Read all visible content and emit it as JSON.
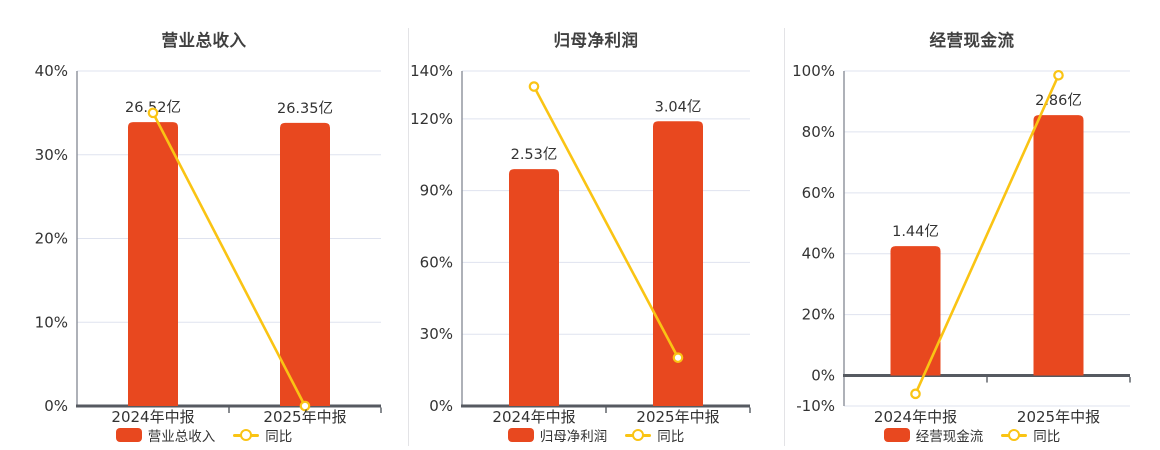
{
  "page": {
    "background": "#ffffff"
  },
  "colors": {
    "bar": "#E8481F",
    "line": "#FAC414",
    "grid": "#DFE3EF",
    "y_axis": "#8B9099",
    "x_axis": "#565A61",
    "tick_text": "#333333",
    "label_text": "#333333",
    "title_text": "#404040"
  },
  "chart_data": [
    {
      "type": "bar+line",
      "title": "营业总收入",
      "categories": [
        "2024年中报",
        "2025年中报"
      ],
      "bar_series": {
        "name": "营业总收入",
        "unit": "亿",
        "values_yi": [
          26.52,
          26.35
        ],
        "labels": [
          "26.52亿",
          "26.35亿"
        ],
        "heights_axis_units": [
          33.9,
          33.8
        ]
      },
      "line_series": {
        "name": "同比",
        "values_pct": [
          35.0,
          -0.64
        ]
      },
      "yaxis": {
        "min": 0,
        "max": 40,
        "ticks": [
          0,
          10,
          20,
          30,
          40
        ],
        "tick_labels": [
          "0%",
          "10%",
          "20%",
          "30%",
          "40%"
        ]
      },
      "legend": [
        "营业总收入",
        "同比"
      ],
      "grid_on": true,
      "legend_position": "bottom"
    },
    {
      "type": "bar+line",
      "title": "归母净利润",
      "categories": [
        "2024年中报",
        "2025年中报"
      ],
      "bar_series": {
        "name": "归母净利润",
        "unit": "亿",
        "values_yi": [
          2.53,
          3.04
        ],
        "labels": [
          "2.53亿",
          "3.04亿"
        ],
        "heights_axis_units": [
          99.0,
          119.0
        ]
      },
      "line_series": {
        "name": "同比",
        "values_pct": [
          133.5,
          20.2
        ]
      },
      "yaxis": {
        "min": 0,
        "max": 140,
        "ticks": [
          0,
          30,
          60,
          90,
          120,
          140
        ],
        "tick_labels": [
          "0%",
          "30%",
          "60%",
          "90%",
          "120%",
          "140%"
        ]
      },
      "legend": [
        "归母净利润",
        "同比"
      ],
      "grid_on": true,
      "legend_position": "bottom"
    },
    {
      "type": "bar+line",
      "title": "经营现金流",
      "categories": [
        "2024年中报",
        "2025年中报"
      ],
      "bar_series": {
        "name": "经营现金流",
        "unit": "亿",
        "values_yi": [
          1.44,
          2.86
        ],
        "labels": [
          "1.44亿",
          "2.86亿"
        ],
        "heights_axis_units": [
          42.5,
          85.5
        ]
      },
      "line_series": {
        "name": "同比",
        "values_pct": [
          -6.0,
          98.6
        ]
      },
      "yaxis": {
        "min": -10,
        "max": 100,
        "ticks": [
          -10,
          0,
          20,
          40,
          60,
          80,
          100
        ],
        "tick_labels": [
          "-10%",
          "0%",
          "20%",
          "40%",
          "60%",
          "80%",
          "100%"
        ]
      },
      "legend": [
        "经营现金流",
        "同比"
      ],
      "grid_on": true,
      "legend_position": "bottom"
    }
  ]
}
